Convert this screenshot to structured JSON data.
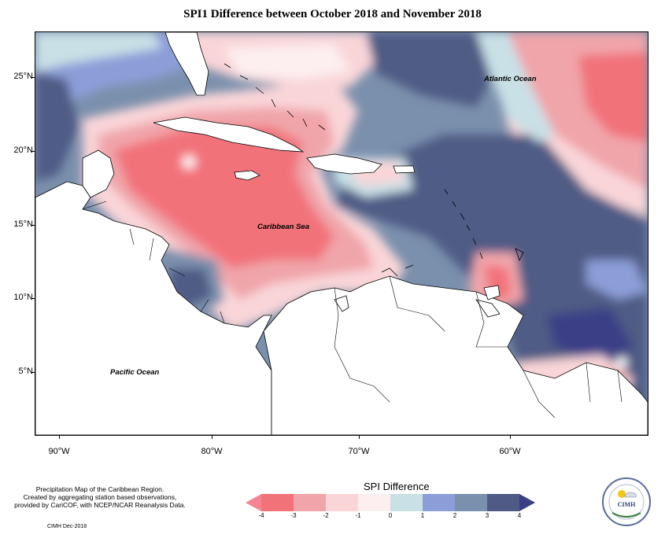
{
  "title": "SPI1 Difference between October 2018 and November 2018",
  "map": {
    "latitude_labels": [
      "25°N",
      "20°N",
      "15°N",
      "10°N",
      "5°N"
    ],
    "longitude_labels": [
      "90°W",
      "80°W",
      "70°W",
      "60°W"
    ],
    "place_labels": {
      "atlantic": "Atlantic Ocean",
      "caribbean": "Caribbean Sea",
      "pacific": "Pacific Ocean"
    }
  },
  "footer": {
    "line1": "Precipitation Map of the Caribbean Region.",
    "line2": "Created by aggregating station based observations,",
    "line3": "provided by CariCOF, with NCEP/NCAR Reanalysis Data.",
    "credit": "CIMH Dec-2018"
  },
  "legend": {
    "title": "SPI Difference",
    "ticks": [
      "-4",
      "-3",
      "-2",
      "-1",
      "0",
      "1",
      "2",
      "3",
      "4"
    ],
    "colors": [
      "#f2727a",
      "#f0a5aa",
      "#f9d5d8",
      "#fdeef0",
      "#c9e0e6",
      "#8c9ed8",
      "#7b90ad",
      "#4f5b85"
    ],
    "end_colors": {
      "low": "#f58590",
      "high": "#3b3f86"
    }
  },
  "logo": {
    "center_text": "CIMH"
  }
}
